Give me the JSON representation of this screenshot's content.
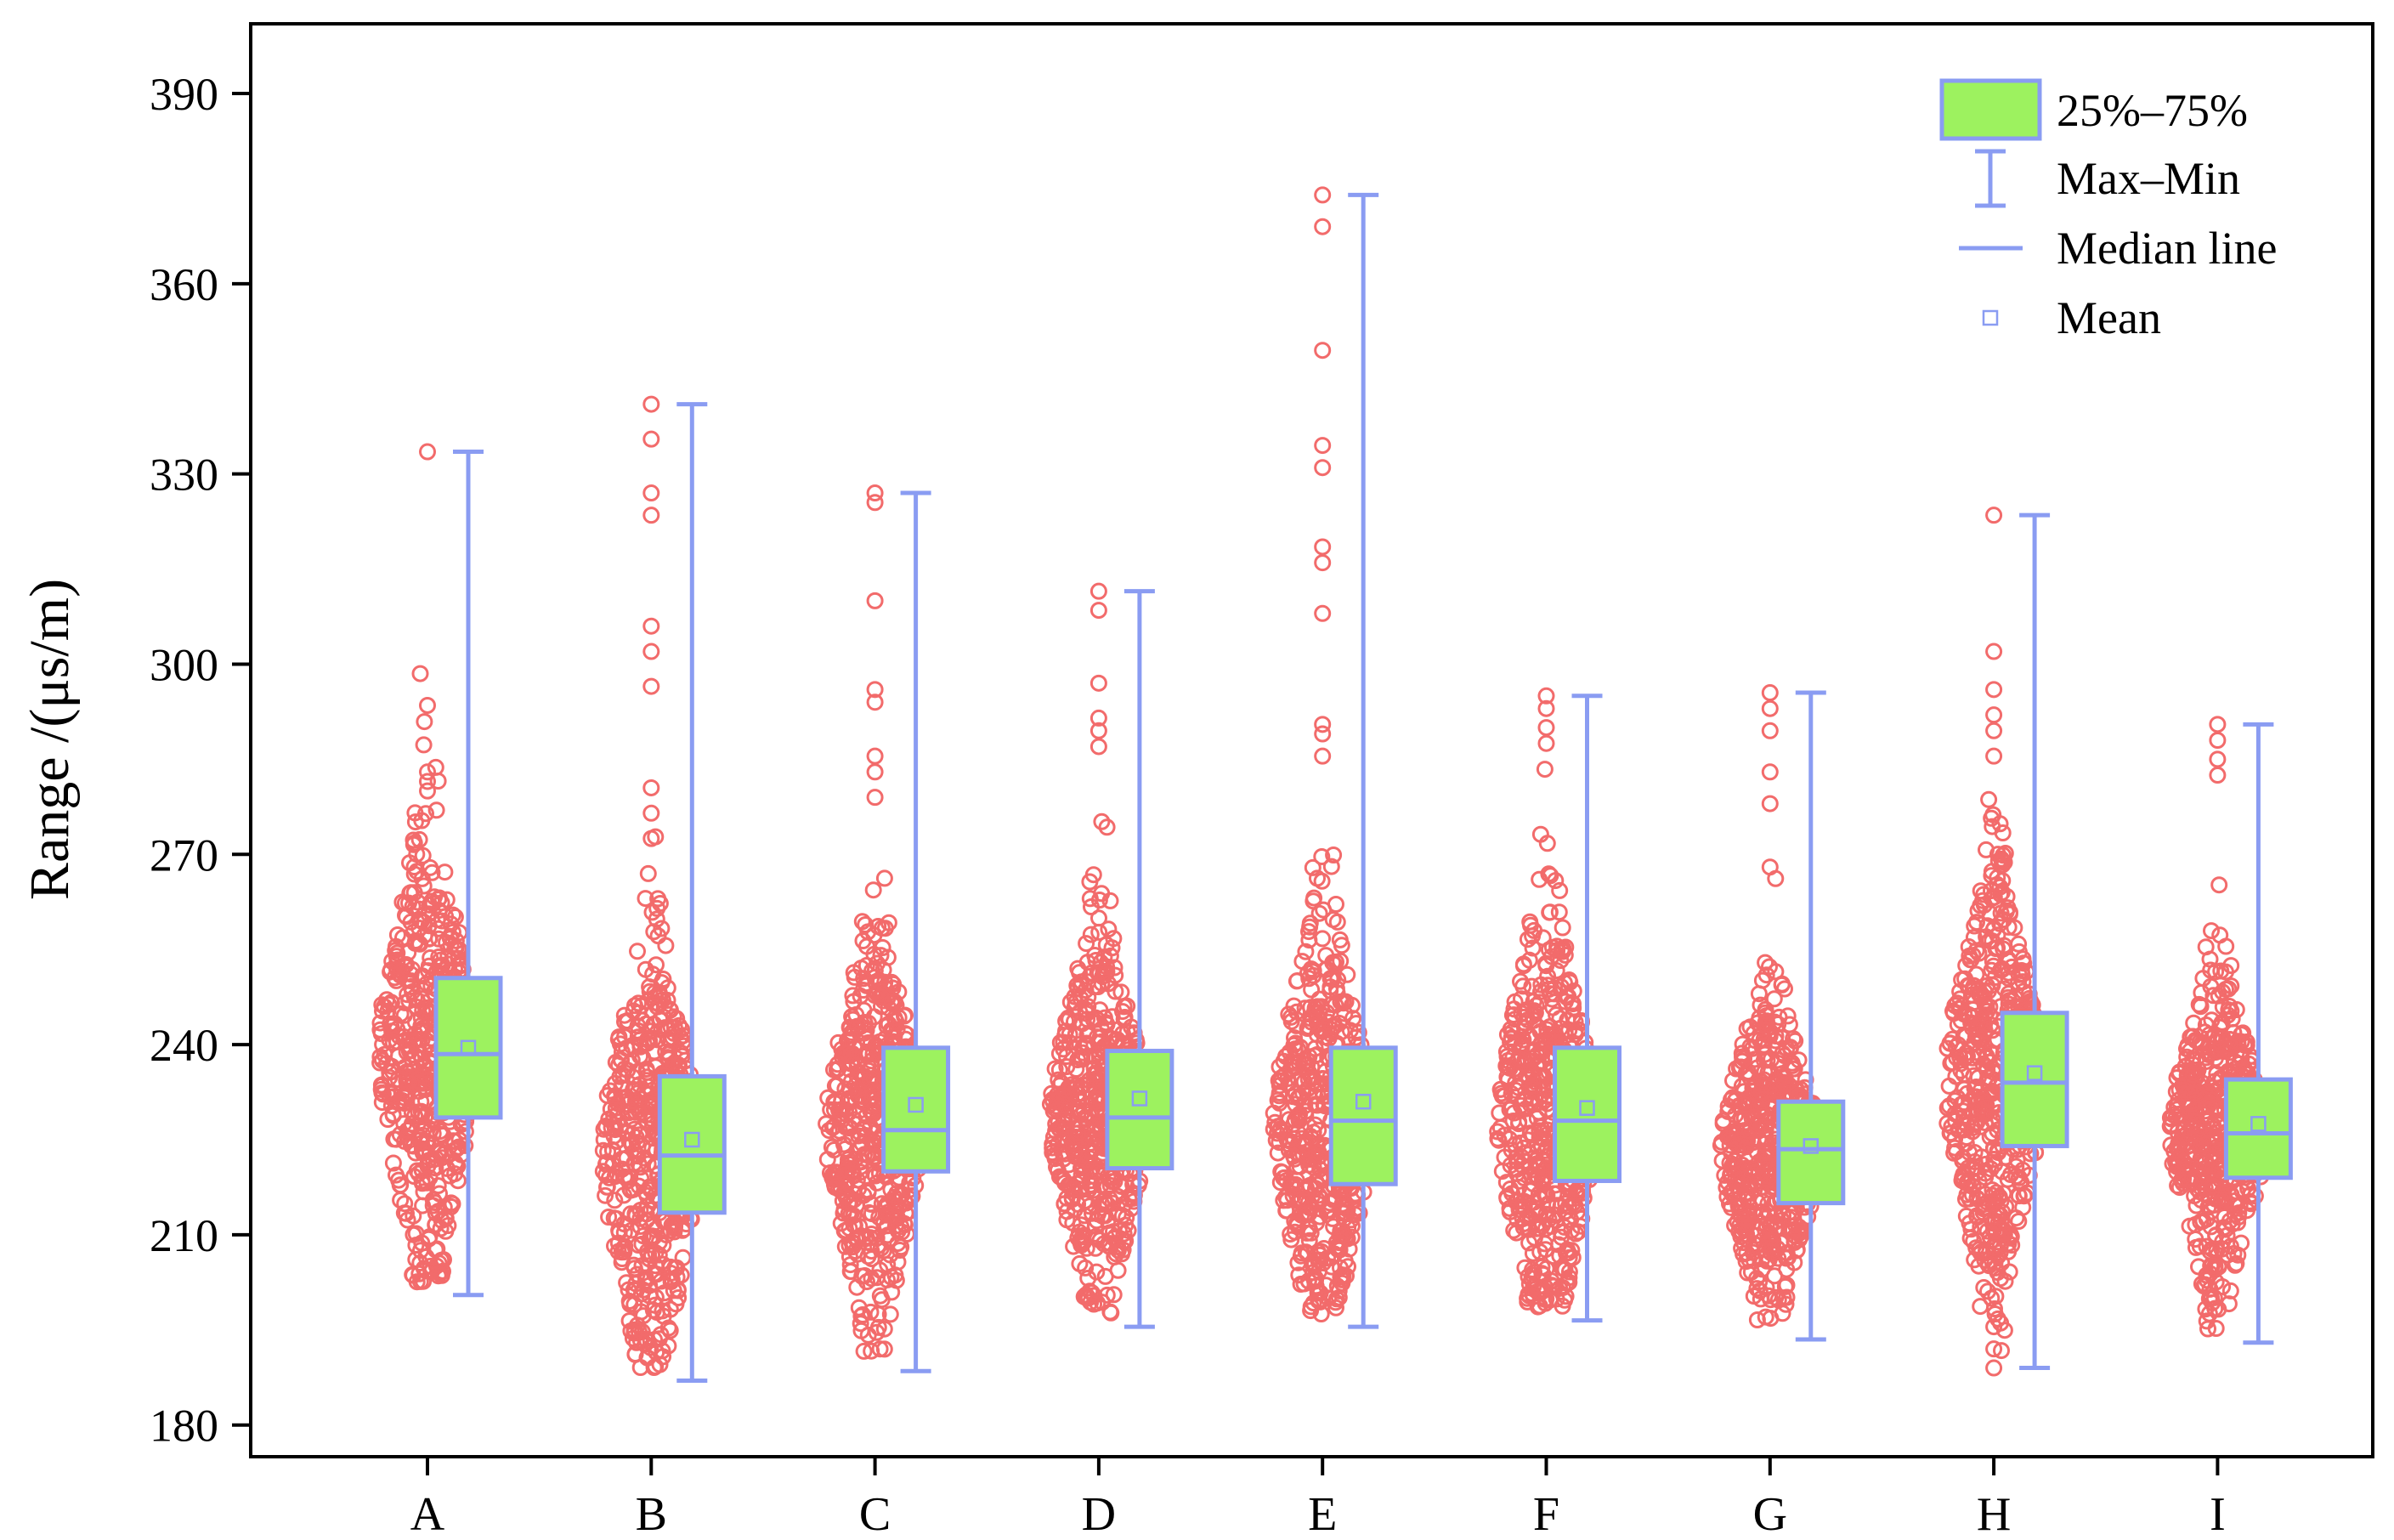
{
  "chart_data": {
    "type": "box",
    "title": "",
    "xlabel": "",
    "ylabel": "Range /(μs/m)",
    "ylim": [
      175,
      401
    ],
    "yticks": [
      180,
      210,
      240,
      270,
      300,
      330,
      360,
      390
    ],
    "ytick_labels": [
      "180",
      "210",
      "240",
      "270",
      "300",
      "330",
      "360",
      "390"
    ],
    "categories": [
      "A",
      "B",
      "C",
      "D",
      "E",
      "F",
      "G",
      "H",
      "I"
    ],
    "boxes": [
      {
        "category": "A",
        "min": 200.5,
        "q1": 228.5,
        "median": 238.5,
        "q3": 250.5,
        "max": 333.5,
        "mean": 239.5
      },
      {
        "category": "B",
        "min": 187.0,
        "q1": 213.5,
        "median": 222.5,
        "q3": 235.0,
        "max": 341.0,
        "mean": 225.0
      },
      {
        "category": "C",
        "min": 188.5,
        "q1": 220.0,
        "median": 226.5,
        "q3": 239.5,
        "max": 327.0,
        "mean": 230.5
      },
      {
        "category": "D",
        "min": 195.5,
        "q1": 220.5,
        "median": 228.5,
        "q3": 239.0,
        "max": 311.5,
        "mean": 231.5
      },
      {
        "category": "E",
        "min": 195.5,
        "q1": 218.0,
        "median": 228.0,
        "q3": 239.5,
        "max": 374.0,
        "mean": 231.0
      },
      {
        "category": "F",
        "min": 196.5,
        "q1": 218.5,
        "median": 228.0,
        "q3": 239.5,
        "max": 295.0,
        "mean": 230.0
      },
      {
        "category": "G",
        "min": 193.5,
        "q1": 215.0,
        "median": 223.5,
        "q3": 231.0,
        "max": 295.5,
        "mean": 224.0
      },
      {
        "category": "H",
        "min": 189.0,
        "q1": 224.0,
        "median": 234.0,
        "q3": 245.0,
        "max": 323.5,
        "mean": 235.5
      },
      {
        "category": "I",
        "min": 193.0,
        "q1": 219.0,
        "median": 226.0,
        "q3": 234.5,
        "max": 290.5,
        "mean": 227.5
      }
    ],
    "outliers_high": [
      {
        "category": "A",
        "values": [
          333.5,
          293.5,
          283.0,
          281.5,
          280.0
        ]
      },
      {
        "category": "B",
        "values": [
          341.0,
          335.5,
          327.0,
          323.5,
          306.0,
          302.0,
          296.5,
          280.5,
          276.5,
          272.5
        ]
      },
      {
        "category": "C",
        "values": [
          327.0,
          325.5,
          310.0,
          296.0,
          294.0,
          285.5,
          283.0,
          279.0
        ]
      },
      {
        "category": "D",
        "values": [
          311.5,
          308.5,
          297.0,
          291.5,
          289.5,
          287.0
        ]
      },
      {
        "category": "E",
        "values": [
          374.0,
          369.0,
          349.5,
          334.5,
          331.0,
          318.5,
          316.0,
          308.0,
          290.5,
          289.0,
          285.5
        ]
      },
      {
        "category": "F",
        "values": [
          295.0,
          293.0,
          290.0,
          287.5
        ]
      },
      {
        "category": "G",
        "values": [
          295.5,
          293.0,
          289.5,
          283.0,
          278.0,
          268.0
        ]
      },
      {
        "category": "H",
        "values": [
          323.5,
          302.0,
          296.0,
          292.0,
          289.5,
          285.5
        ]
      },
      {
        "category": "I",
        "values": [
          290.5,
          288.0,
          285.0,
          282.5
        ]
      }
    ],
    "outliers_low": [
      {
        "category": "H",
        "values": [
          195.5,
          192.0,
          189.0
        ]
      }
    ],
    "legend": {
      "position": "top-right",
      "items": [
        "25%–75%",
        "Max–Min",
        "Median line",
        "Mean"
      ]
    },
    "colors": {
      "box_fill": "#9df25f",
      "box_stroke": "#8a9cf2",
      "whisker": "#8a9cf2",
      "points": "#f26b6b",
      "axis": "#000000"
    },
    "grid": false
  }
}
